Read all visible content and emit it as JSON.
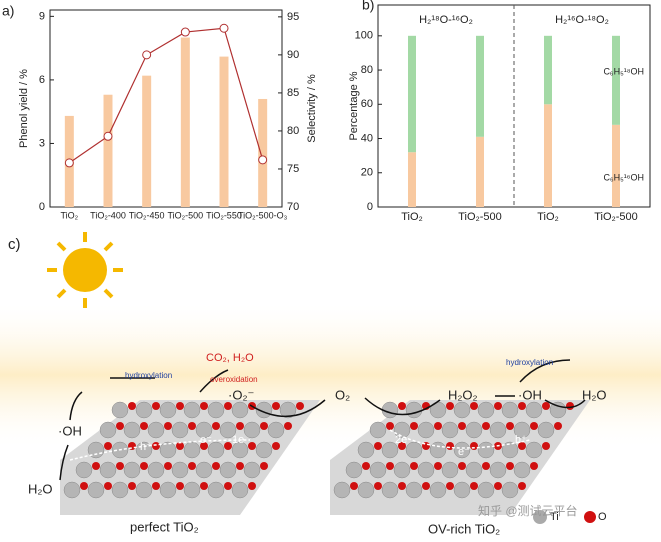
{
  "chart_data": [
    {
      "type": "combo",
      "panel": "a)",
      "ylabel": "Phenol yield / %",
      "y2label": "Selectivity / %",
      "categories": [
        "TiO₂",
        "TiO₂-400",
        "TiO₂-450",
        "TiO₂-500",
        "TiO₂-550",
        "TiO₂-500-O₃"
      ],
      "series": [
        {
          "type": "bar",
          "color": "#f8c9a0",
          "values": [
            4.3,
            5.3,
            6.2,
            8.0,
            7.1,
            5.1
          ]
        },
        {
          "type": "line",
          "axis": "y2",
          "color": "#b03030",
          "values": [
            75.8,
            79.3,
            90,
            93,
            93.5,
            76.2
          ]
        }
      ],
      "ylim": [
        0,
        9.3
      ],
      "yticks": [
        0,
        3,
        6,
        9
      ],
      "y2lim": [
        70,
        95.9
      ],
      "y2ticks": [
        70,
        75,
        80,
        85,
        90,
        95
      ]
    },
    {
      "type": "stacked-bar",
      "panel": "b)",
      "ylabel": "Percentage %",
      "groups": [
        "H₂¹⁸O-¹⁶O₂",
        "H₂¹⁶O-¹⁸O₂"
      ],
      "categories": [
        "TiO₂",
        "TiO₂-500",
        "TiO₂",
        "TiO₂-500"
      ],
      "series": [
        {
          "name": "C₆H₅¹⁶OH",
          "color": "#f8c9a0",
          "values": [
            32,
            41,
            60,
            48
          ]
        },
        {
          "name": "C₆H₅¹⁸OH",
          "color": "#a3d9a5",
          "values": [
            68,
            59,
            40,
            52
          ]
        }
      ],
      "ylim": [
        0,
        118
      ],
      "yticks": [
        0,
        20,
        40,
        60,
        80,
        100
      ]
    }
  ],
  "diagram": {
    "panel": "c)",
    "labels": {
      "hydroxylation_left": "hydroxylation",
      "products": "CO₂, H₂O",
      "overoxidation": "overoxidation",
      "superoxide": "·O₂⁻",
      "oxygen": "O₂",
      "peroxide": "H₂O₂",
      "hydroxyl_right": "·OH",
      "water_right": "H₂O",
      "hydroxylation_right": "hydroxylation",
      "hydroxyl_left": "·OH",
      "water_left": "H₂O",
      "hole_left": "h⁺",
      "electron_left": "e⁻",
      "one_e": "1e",
      "two_e": "2e",
      "electron_right": "e⁻",
      "hole_right": "h⁺",
      "perfect": "perfect TiO₂",
      "ov_rich": "OV-rich TiO₂",
      "ti": "Ti",
      "o": "O",
      "watermark": "知乎 @测试云平台"
    }
  }
}
